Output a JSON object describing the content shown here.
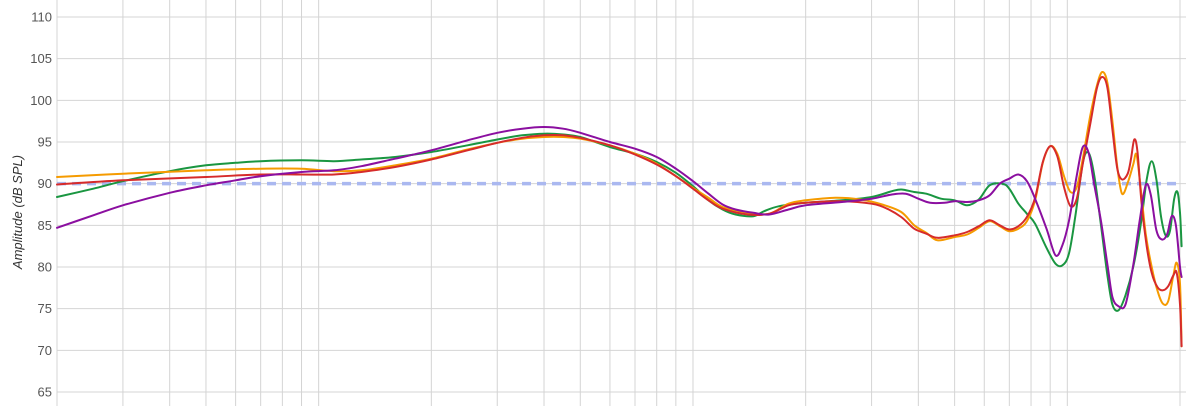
{
  "chart_data": {
    "type": "line",
    "title": "",
    "xlabel": "",
    "ylabel": "Amplitude (dB SPL)",
    "x_scale": "log",
    "xlim": [
      20,
      20000
    ],
    "ylim": [
      65,
      110
    ],
    "yticks": [
      65,
      70,
      75,
      80,
      85,
      90,
      95,
      100,
      105,
      110
    ],
    "grid": true,
    "legend": "none",
    "target": {
      "y": 90,
      "color": "#aab8f0"
    },
    "series": [
      {
        "color": "#1a9641",
        "points": [
          [
            20,
            88.4
          ],
          [
            25,
            89.4
          ],
          [
            30,
            90.3
          ],
          [
            40,
            91.5
          ],
          [
            50,
            92.2
          ],
          [
            60,
            92.5
          ],
          [
            70,
            92.7
          ],
          [
            90,
            92.8
          ],
          [
            110,
            92.7
          ],
          [
            130,
            92.9
          ],
          [
            160,
            93.2
          ],
          [
            200,
            93.8
          ],
          [
            250,
            94.6
          ],
          [
            300,
            95.3
          ],
          [
            350,
            95.8
          ],
          [
            400,
            96.0
          ],
          [
            450,
            95.9
          ],
          [
            500,
            95.6
          ],
          [
            600,
            94.4
          ],
          [
            700,
            93.6
          ],
          [
            800,
            92.6
          ],
          [
            900,
            91.3
          ],
          [
            1000,
            89.7
          ],
          [
            1100,
            88.0
          ],
          [
            1200,
            86.9
          ],
          [
            1300,
            86.3
          ],
          [
            1450,
            86.1
          ],
          [
            1550,
            86.7
          ],
          [
            1700,
            87.3
          ],
          [
            2000,
            87.7
          ],
          [
            2500,
            88.0
          ],
          [
            3000,
            88.4
          ],
          [
            3400,
            89.1
          ],
          [
            3600,
            89.3
          ],
          [
            3900,
            89.0
          ],
          [
            4200,
            88.8
          ],
          [
            4600,
            88.2
          ],
          [
            5000,
            88.0
          ],
          [
            5400,
            87.4
          ],
          [
            5800,
            88.1
          ],
          [
            6200,
            89.8
          ],
          [
            6700,
            90.0
          ],
          [
            7000,
            89.4
          ],
          [
            7400,
            87.6
          ],
          [
            7800,
            86.4
          ],
          [
            8200,
            85.2
          ],
          [
            8800,
            82.3
          ],
          [
            9300,
            80.4
          ],
          [
            9700,
            80.2
          ],
          [
            10100,
            81.6
          ],
          [
            10500,
            86.0
          ],
          [
            11000,
            92.5
          ],
          [
            11400,
            93.7
          ],
          [
            11800,
            91.0
          ],
          [
            12300,
            85.0
          ],
          [
            12800,
            79.0
          ],
          [
            13200,
            75.5
          ],
          [
            13700,
            74.8
          ],
          [
            14300,
            76.6
          ],
          [
            15000,
            80.0
          ],
          [
            15700,
            85.0
          ],
          [
            16300,
            90.5
          ],
          [
            16800,
            92.7
          ],
          [
            17300,
            90.5
          ],
          [
            17800,
            86.0
          ],
          [
            18300,
            83.8
          ],
          [
            18800,
            84.3
          ],
          [
            19300,
            88.2
          ],
          [
            19700,
            89.0
          ],
          [
            20000,
            86.5
          ],
          [
            20200,
            82.5
          ]
        ]
      },
      {
        "color": "#f59b00",
        "points": [
          [
            20,
            90.8
          ],
          [
            30,
            91.2
          ],
          [
            50,
            91.6
          ],
          [
            70,
            91.8
          ],
          [
            90,
            91.8
          ],
          [
            110,
            91.5
          ],
          [
            130,
            91.6
          ],
          [
            160,
            92.2
          ],
          [
            200,
            93.0
          ],
          [
            250,
            94.1
          ],
          [
            300,
            94.9
          ],
          [
            350,
            95.4
          ],
          [
            400,
            95.6
          ],
          [
            450,
            95.6
          ],
          [
            500,
            95.4
          ],
          [
            600,
            94.6
          ],
          [
            700,
            93.6
          ],
          [
            800,
            92.4
          ],
          [
            900,
            90.9
          ],
          [
            1000,
            89.5
          ],
          [
            1100,
            88.3
          ],
          [
            1200,
            87.2
          ],
          [
            1400,
            86.5
          ],
          [
            1600,
            86.4
          ],
          [
            1800,
            87.6
          ],
          [
            2000,
            88.0
          ],
          [
            2400,
            88.3
          ],
          [
            2800,
            88.1
          ],
          [
            3200,
            87.5
          ],
          [
            3600,
            86.6
          ],
          [
            3900,
            85.0
          ],
          [
            4200,
            84.1
          ],
          [
            4500,
            83.2
          ],
          [
            5000,
            83.6
          ],
          [
            5400,
            83.9
          ],
          [
            5800,
            84.7
          ],
          [
            6200,
            85.5
          ],
          [
            6600,
            84.9
          ],
          [
            7000,
            84.3
          ],
          [
            7400,
            84.6
          ],
          [
            7800,
            85.5
          ],
          [
            8200,
            88.0
          ],
          [
            8600,
            92.5
          ],
          [
            9000,
            94.5
          ],
          [
            9400,
            93.6
          ],
          [
            9800,
            90.9
          ],
          [
            10200,
            89.0
          ],
          [
            10600,
            89.6
          ],
          [
            11000,
            93.0
          ],
          [
            11500,
            98.0
          ],
          [
            12000,
            101.8
          ],
          [
            12400,
            103.4
          ],
          [
            12800,
            102.1
          ],
          [
            13200,
            97.5
          ],
          [
            13600,
            92.0
          ],
          [
            14000,
            88.8
          ],
          [
            14500,
            90.1
          ],
          [
            15000,
            92.3
          ],
          [
            15300,
            93.5
          ],
          [
            15700,
            89.5
          ],
          [
            16200,
            84.0
          ],
          [
            16800,
            80.0
          ],
          [
            17400,
            77.2
          ],
          [
            18000,
            75.6
          ],
          [
            18600,
            75.9
          ],
          [
            19200,
            79.0
          ],
          [
            19600,
            80.5
          ],
          [
            20000,
            78.0
          ],
          [
            20200,
            70.5
          ]
        ]
      },
      {
        "color": "#d62b2b",
        "points": [
          [
            20,
            89.9
          ],
          [
            30,
            90.4
          ],
          [
            50,
            90.8
          ],
          [
            70,
            91.1
          ],
          [
            90,
            91.1
          ],
          [
            110,
            91.1
          ],
          [
            130,
            91.4
          ],
          [
            160,
            92.0
          ],
          [
            200,
            92.9
          ],
          [
            250,
            94.0
          ],
          [
            300,
            94.9
          ],
          [
            350,
            95.5
          ],
          [
            400,
            95.8
          ],
          [
            450,
            95.8
          ],
          [
            500,
            95.5
          ],
          [
            600,
            94.6
          ],
          [
            700,
            93.5
          ],
          [
            800,
            92.3
          ],
          [
            900,
            90.9
          ],
          [
            1000,
            89.4
          ],
          [
            1100,
            88.0
          ],
          [
            1200,
            87.0
          ],
          [
            1400,
            86.3
          ],
          [
            1600,
            86.4
          ],
          [
            1800,
            87.4
          ],
          [
            2000,
            87.7
          ],
          [
            2500,
            87.9
          ],
          [
            3000,
            87.6
          ],
          [
            3300,
            87.0
          ],
          [
            3600,
            86.0
          ],
          [
            3900,
            84.6
          ],
          [
            4200,
            84.0
          ],
          [
            4500,
            83.5
          ],
          [
            5000,
            83.8
          ],
          [
            5400,
            84.2
          ],
          [
            5800,
            84.9
          ],
          [
            6200,
            85.6
          ],
          [
            6600,
            85.0
          ],
          [
            7000,
            84.5
          ],
          [
            7400,
            84.9
          ],
          [
            7800,
            86.0
          ],
          [
            8200,
            88.3
          ],
          [
            8600,
            92.6
          ],
          [
            9000,
            94.5
          ],
          [
            9400,
            93.3
          ],
          [
            9800,
            89.6
          ],
          [
            10200,
            87.3
          ],
          [
            10600,
            88.2
          ],
          [
            11000,
            92.4
          ],
          [
            11500,
            97.0
          ],
          [
            12000,
            101.5
          ],
          [
            12400,
            102.8
          ],
          [
            12800,
            101.5
          ],
          [
            13200,
            96.5
          ],
          [
            13600,
            91.8
          ],
          [
            14000,
            90.5
          ],
          [
            14500,
            91.2
          ],
          [
            14800,
            93.0
          ],
          [
            15100,
            95.3
          ],
          [
            15400,
            93.8
          ],
          [
            15800,
            87.5
          ],
          [
            16300,
            82.5
          ],
          [
            16800,
            79.3
          ],
          [
            17400,
            77.6
          ],
          [
            18000,
            77.2
          ],
          [
            18600,
            77.7
          ],
          [
            19200,
            79.0
          ],
          [
            19600,
            79.3
          ],
          [
            20000,
            75.5
          ],
          [
            20200,
            70.5
          ]
        ]
      },
      {
        "color": "#8b0fa0",
        "points": [
          [
            20,
            84.7
          ],
          [
            25,
            86.2
          ],
          [
            30,
            87.4
          ],
          [
            40,
            88.9
          ],
          [
            50,
            89.8
          ],
          [
            60,
            90.4
          ],
          [
            70,
            90.9
          ],
          [
            90,
            91.4
          ],
          [
            110,
            91.6
          ],
          [
            130,
            92.1
          ],
          [
            160,
            93.0
          ],
          [
            200,
            94.0
          ],
          [
            250,
            95.2
          ],
          [
            300,
            96.1
          ],
          [
            350,
            96.6
          ],
          [
            400,
            96.8
          ],
          [
            450,
            96.6
          ],
          [
            500,
            96.1
          ],
          [
            600,
            95.0
          ],
          [
            700,
            94.2
          ],
          [
            800,
            93.2
          ],
          [
            900,
            91.8
          ],
          [
            1000,
            90.3
          ],
          [
            1100,
            88.8
          ],
          [
            1200,
            87.5
          ],
          [
            1300,
            86.9
          ],
          [
            1450,
            86.5
          ],
          [
            1600,
            86.3
          ],
          [
            1800,
            86.9
          ],
          [
            2000,
            87.4
          ],
          [
            2500,
            87.8
          ],
          [
            3000,
            88.2
          ],
          [
            3400,
            88.7
          ],
          [
            3700,
            88.8
          ],
          [
            4000,
            88.2
          ],
          [
            4300,
            87.7
          ],
          [
            4700,
            87.7
          ],
          [
            5000,
            87.9
          ],
          [
            5400,
            87.8
          ],
          [
            5800,
            88.0
          ],
          [
            6200,
            88.6
          ],
          [
            6600,
            90.0
          ],
          [
            7000,
            90.6
          ],
          [
            7400,
            91.1
          ],
          [
            7800,
            90.3
          ],
          [
            8200,
            88.2
          ],
          [
            8800,
            84.6
          ],
          [
            9300,
            81.4
          ],
          [
            9700,
            82.6
          ],
          [
            10100,
            85.5
          ],
          [
            10600,
            91.0
          ],
          [
            11000,
            94.4
          ],
          [
            11400,
            93.7
          ],
          [
            11800,
            89.9
          ],
          [
            12300,
            85.5
          ],
          [
            12800,
            80.3
          ],
          [
            13200,
            76.4
          ],
          [
            13700,
            75.3
          ],
          [
            14300,
            75.5
          ],
          [
            15000,
            80.2
          ],
          [
            15600,
            85.5
          ],
          [
            16200,
            89.8
          ],
          [
            16700,
            88.7
          ],
          [
            17300,
            84.4
          ],
          [
            17900,
            83.3
          ],
          [
            18500,
            84.0
          ],
          [
            19000,
            86.1
          ],
          [
            19500,
            85.0
          ],
          [
            20000,
            80.0
          ],
          [
            20200,
            78.8
          ]
        ]
      }
    ]
  }
}
